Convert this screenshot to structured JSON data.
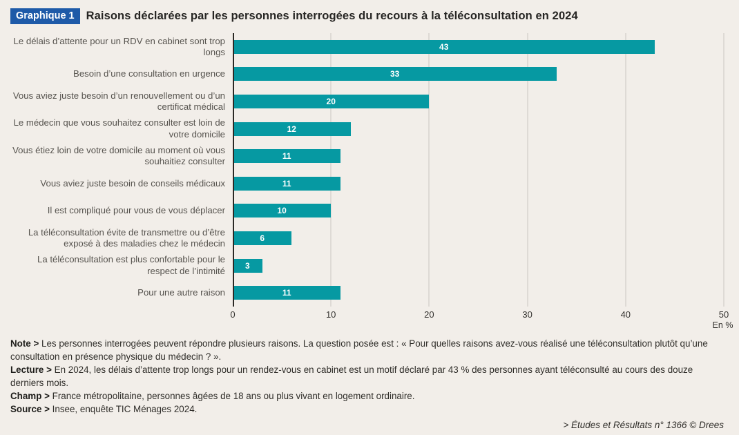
{
  "header": {
    "badge": "Graphique 1",
    "title": "Raisons déclarées par les personnes interrogées du recours à la téléconsultation en 2024"
  },
  "chart_data": {
    "type": "bar",
    "orientation": "horizontal",
    "title": "Raisons déclarées par les personnes interrogées du recours à la téléconsultation en 2024",
    "categories": [
      "Le délais d’attente pour un RDV en cabinet sont trop longs",
      "Besoin d’une consultation en urgence",
      "Vous aviez juste besoin d’un renouvellement ou d’un certificat médical",
      "Le médecin que vous souhaitez consulter est loin de votre domicile",
      "Vous étiez loin de votre domicile au moment où vous souhaitiez consulter",
      "Vous aviez juste besoin de conseils médicaux",
      "Il est compliqué pour vous de vous déplacer",
      "La téléconsultation évite de transmettre ou d’être exposé à des maladies chez le médecin",
      "La téléconsultation est plus confortable pour le respect de l’intimité",
      "Pour une autre raison"
    ],
    "values": [
      43,
      33,
      20,
      12,
      11,
      11,
      10,
      6,
      3,
      11
    ],
    "xlim": [
      0,
      50
    ],
    "xticks": [
      0,
      10,
      20,
      30,
      40,
      50
    ],
    "unit_label": "En %",
    "bar_color": "#0699A2",
    "grid": true,
    "legend": null
  },
  "notes": [
    {
      "label": "Note >",
      "text": "Les personnes interrogées peuvent répondre plusieurs raisons. La question posée est : « Pour quelles raisons avez-vous réalisé une téléconsultation plutôt qu’une consultation en présence physique du médecin ? »."
    },
    {
      "label": "Lecture >",
      "text": "En 2024, les délais d’attente trop longs pour un rendez-vous en cabinet est un motif déclaré par 43 % des personnes ayant téléconsulté au cours des douze derniers mois."
    },
    {
      "label": "Champ >",
      "text": "France métropolitaine, personnes âgées de 18 ans ou plus vivant en logement ordinaire."
    },
    {
      "label": "Source >",
      "text": "Insee, enquête TIC Ménages 2024."
    }
  ],
  "footer": {
    "credit": "> Études et Résultats n° 1366 © Drees"
  },
  "colors": {
    "background": "#F2EEE9",
    "bar": "#0699A2",
    "badge": "#1E5AA8",
    "gridline": "#CBC7C1",
    "axis": "#2B2925"
  }
}
